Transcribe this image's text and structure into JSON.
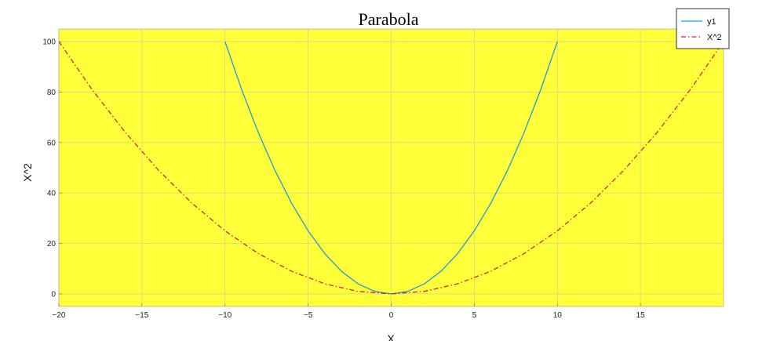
{
  "chart_data": {
    "type": "line",
    "title": "Parabola",
    "xlabel": "X",
    "ylabel": "X^2",
    "xlim": [
      -20,
      20
    ],
    "ylim": [
      -5,
      105
    ],
    "xticks": [
      -20,
      -15,
      -10,
      -5,
      0,
      5,
      10,
      15
    ],
    "yticks": [
      0,
      20,
      40,
      60,
      80,
      100
    ],
    "grid": true,
    "legend": "top-right",
    "colors": {
      "plot_background": "#ffff3a",
      "grid": "#c8c8a0"
    },
    "series": [
      {
        "name": "y1",
        "color": "#1f9ad8",
        "style": "solid",
        "x": [
          -10,
          -9,
          -8,
          -7,
          -6,
          -5,
          -4,
          -3,
          -2,
          -1,
          0,
          1,
          2,
          3,
          4,
          5,
          6,
          7,
          8,
          9,
          10
        ],
        "y": [
          100,
          81,
          64,
          49,
          36,
          25,
          16,
          9,
          4,
          1,
          0,
          1,
          4,
          9,
          16,
          25,
          36,
          49,
          64,
          81,
          100
        ]
      },
      {
        "name": "X^2",
        "color": "#e0201c",
        "style": "dash-dot",
        "x": [
          -20,
          -18,
          -16,
          -14,
          -12,
          -10,
          -8,
          -6,
          -4,
          -2,
          0,
          2,
          4,
          6,
          8,
          10,
          12,
          14,
          16,
          18,
          20
        ],
        "y": [
          100,
          81,
          64,
          49,
          36,
          25,
          16,
          9,
          4,
          1,
          0,
          1,
          4,
          9,
          16,
          25,
          36,
          49,
          64,
          81,
          100
        ]
      }
    ]
  }
}
